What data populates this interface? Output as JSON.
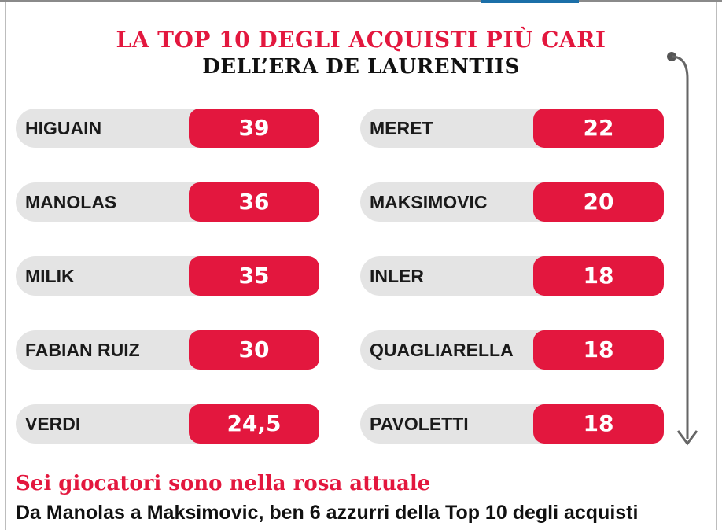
{
  "header": {
    "title_line1": "LA TOP 10 DEGLI ACQUISTI PIÙ CARI",
    "title_line2": "DELL’ERA DE LAURENTIIS"
  },
  "colors": {
    "accent": "#e3173e",
    "row_bg": "#e4e4e4",
    "text": "#1a1a1a"
  },
  "players": [
    {
      "name": "HIGUAIN",
      "value": "39"
    },
    {
      "name": "MANOLAS",
      "value": "36"
    },
    {
      "name": "MILIK",
      "value": "35"
    },
    {
      "name": "FABIAN RUIZ",
      "value": "30"
    },
    {
      "name": "VERDI",
      "value": "24,5"
    },
    {
      "name": "MERET",
      "value": "22"
    },
    {
      "name": "MAKSIMOVIC",
      "value": "20"
    },
    {
      "name": "INLER",
      "value": "18"
    },
    {
      "name": "QUAGLIARELLA",
      "value": "18"
    },
    {
      "name": "PAVOLETTI",
      "value": "18"
    }
  ],
  "footer": {
    "headline": "Sei giocatori sono nella rosa attuale",
    "text": "Da Manolas a Maksimovic, ben 6 azzurri della Top 10 degli acquisti"
  }
}
